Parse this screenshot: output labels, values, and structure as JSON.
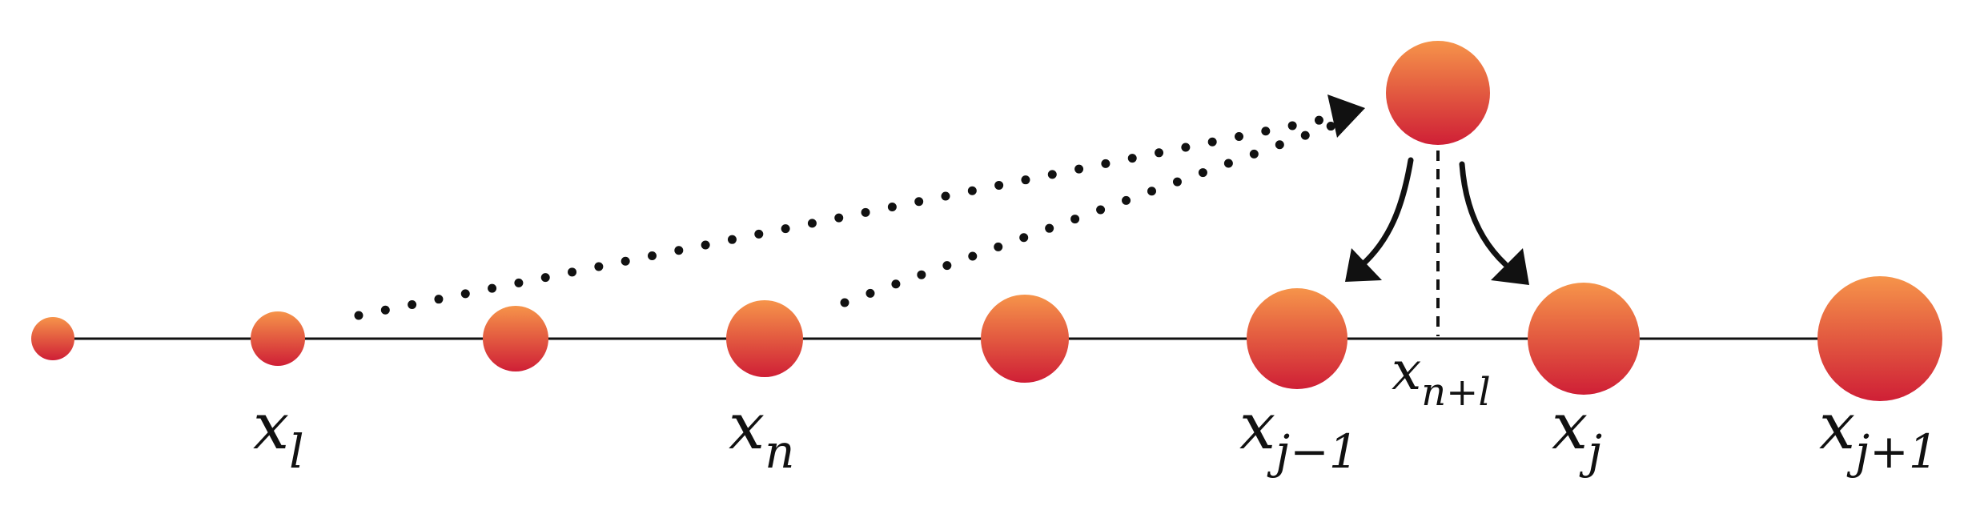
{
  "diagram": {
    "labels": [
      {
        "id": "x-l",
        "base": "x",
        "sub": "l"
      },
      {
        "id": "x-n",
        "base": "x",
        "sub": "n"
      },
      {
        "id": "x-j-minus",
        "base": "x",
        "sub": "j−1"
      },
      {
        "id": "x-n-plus",
        "base": "x",
        "sub": "n+l"
      },
      {
        "id": "x-j",
        "base": "x",
        "sub": "j"
      },
      {
        "id": "x-j-plus",
        "base": "x",
        "sub": "j+1"
      }
    ],
    "colors": {
      "node_top": "#f6944a",
      "node_bottom": "#cf1f36",
      "line": "#111111",
      "dots": "#111111"
    }
  }
}
